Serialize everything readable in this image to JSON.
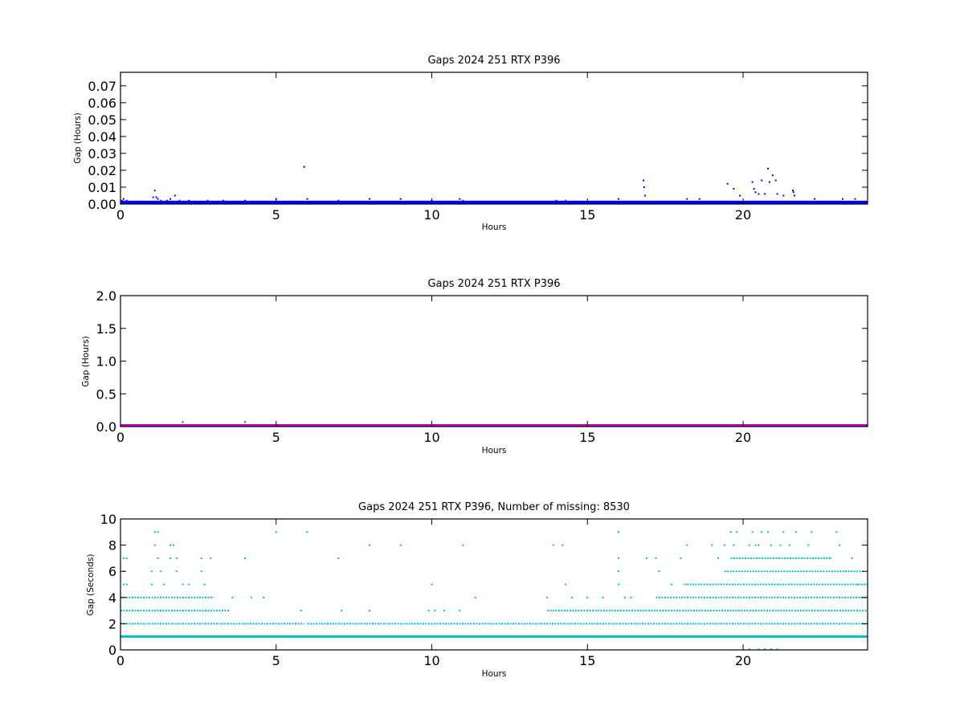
{
  "figure": {
    "background": "#ffffff"
  },
  "chart_data": [
    {
      "type": "scatter",
      "title": "Gaps 2024 251 RTX  P396",
      "xlabel": "Hours",
      "ylabel": "Gap (Hours)",
      "xlim": [
        0,
        24
      ],
      "ylim": [
        0,
        0.078
      ],
      "xticks": [
        0,
        5,
        10,
        15,
        20
      ],
      "xtick_labels": [
        "0",
        "5",
        "10",
        "15",
        "20"
      ],
      "yticks": [
        0,
        0.01,
        0.02,
        0.03,
        0.04,
        0.05,
        0.06,
        0.07
      ],
      "ytick_labels": [
        "0.00",
        "0.01",
        "0.02",
        "0.03",
        "0.04",
        "0.05",
        "0.06",
        "0.07"
      ],
      "color": "#0000ff",
      "baseline_band": {
        "x": [
          0,
          24
        ],
        "y": [
          0.0,
          0.0015
        ]
      },
      "series": [
        {
          "points": [
            [
              0.05,
              0.002
            ],
            [
              0.1,
              0.003
            ],
            [
              0.2,
              0.002
            ],
            [
              1.05,
              0.004
            ],
            [
              1.1,
              0.008
            ],
            [
              1.15,
              0.004
            ],
            [
              1.2,
              0.003
            ],
            [
              1.3,
              0.002
            ],
            [
              1.5,
              0.002
            ],
            [
              1.6,
              0.003
            ],
            [
              1.75,
              0.005
            ],
            [
              1.9,
              0.002
            ],
            [
              2.2,
              0.002
            ],
            [
              2.8,
              0.002
            ],
            [
              3.3,
              0.002
            ],
            [
              4.0,
              0.002
            ],
            [
              5.0,
              0.003
            ],
            [
              5.9,
              0.022
            ],
            [
              6.0,
              0.003
            ],
            [
              7.0,
              0.002
            ],
            [
              8.0,
              0.003
            ],
            [
              9.0,
              0.003
            ],
            [
              10.0,
              0.002
            ],
            [
              10.9,
              0.003
            ],
            [
              11.0,
              0.002
            ],
            [
              14.0,
              0.002
            ],
            [
              14.3,
              0.002
            ],
            [
              16.0,
              0.003
            ],
            [
              16.8,
              0.014
            ],
            [
              16.82,
              0.01
            ],
            [
              16.85,
              0.005
            ],
            [
              18.2,
              0.003
            ],
            [
              18.6,
              0.003
            ],
            [
              19.5,
              0.012
            ],
            [
              19.7,
              0.009
            ],
            [
              19.9,
              0.005
            ],
            [
              20.3,
              0.013
            ],
            [
              20.35,
              0.009
            ],
            [
              20.4,
              0.007
            ],
            [
              20.5,
              0.006
            ],
            [
              20.6,
              0.014
            ],
            [
              20.7,
              0.006
            ],
            [
              20.8,
              0.021
            ],
            [
              20.85,
              0.013
            ],
            [
              20.95,
              0.017
            ],
            [
              21.05,
              0.014
            ],
            [
              21.1,
              0.006
            ],
            [
              21.3,
              0.005
            ],
            [
              21.6,
              0.008
            ],
            [
              21.62,
              0.007
            ],
            [
              21.65,
              0.005
            ],
            [
              22.3,
              0.003
            ],
            [
              23.2,
              0.003
            ],
            [
              23.6,
              0.003
            ]
          ]
        }
      ]
    },
    {
      "type": "scatter",
      "title": "Gaps 2024 251 RTX  P396",
      "xlabel": "Hours",
      "ylabel": "Gap (Hours)",
      "xlim": [
        0,
        24
      ],
      "ylim": [
        0,
        2.0
      ],
      "xticks": [
        0,
        5,
        10,
        15,
        20
      ],
      "xtick_labels": [
        "0",
        "5",
        "10",
        "15",
        "20"
      ],
      "yticks": [
        0,
        0.5,
        1.0,
        1.5,
        2.0
      ],
      "ytick_labels": [
        "0.0",
        "0.5",
        "1.0",
        "1.5",
        "2.0"
      ],
      "color": "#bf00bf",
      "baseline_band": {
        "x": [
          0,
          24
        ],
        "y": [
          0.0,
          0.025
        ]
      },
      "series": [
        {
          "points": [
            [
              2.0,
              0.07
            ],
            [
              4.0,
              0.07
            ]
          ]
        }
      ]
    },
    {
      "type": "scatter",
      "title": "Gaps 2024 251 RTX  P396, Number of missing: 8530",
      "xlabel": "Hours",
      "ylabel": "Gap (Seconds)",
      "xlim": [
        0,
        24
      ],
      "ylim": [
        0,
        10
      ],
      "xticks": [
        0,
        5,
        10,
        15,
        20
      ],
      "xtick_labels": [
        "0",
        "5",
        "10",
        "15",
        "20"
      ],
      "yticks": [
        0,
        2,
        4,
        6,
        8,
        10
      ],
      "ytick_labels": [
        "0",
        "2",
        "4",
        "6",
        "8",
        "10"
      ],
      "color": "#00bfbf",
      "baseline_band": {
        "x": [
          0,
          24
        ],
        "y": [
          0.95,
          1.05
        ]
      },
      "level_segments": [
        {
          "y": 2,
          "ranges": [
            [
              0,
              5.9
            ],
            [
              6.0,
              24
            ]
          ]
        },
        {
          "y": 3,
          "ranges": [
            [
              0,
              3.5
            ],
            [
              13.7,
              24
            ]
          ]
        },
        {
          "y": 4,
          "ranges": [
            [
              0,
              3.0
            ],
            [
              17.2,
              24
            ]
          ]
        },
        {
          "y": 5,
          "ranges": [
            [
              18.1,
              24
            ]
          ]
        },
        {
          "y": 6,
          "ranges": [
            [
              19.4,
              23.9
            ]
          ]
        },
        {
          "y": 7,
          "ranges": [
            [
              19.6,
              22.8
            ]
          ]
        }
      ],
      "series": [
        {
          "points": [
            [
              0.1,
              5
            ],
            [
              0.1,
              6
            ],
            [
              0.1,
              7
            ],
            [
              0.2,
              5
            ],
            [
              0.2,
              7
            ],
            [
              1.0,
              5
            ],
            [
              1.0,
              6
            ],
            [
              1.1,
              9
            ],
            [
              1.1,
              8
            ],
            [
              1.2,
              9
            ],
            [
              1.2,
              7
            ],
            [
              1.3,
              6
            ],
            [
              1.4,
              5
            ],
            [
              1.6,
              8
            ],
            [
              1.6,
              7
            ],
            [
              1.7,
              8
            ],
            [
              1.8,
              7
            ],
            [
              1.8,
              6
            ],
            [
              2.0,
              5
            ],
            [
              2.2,
              5
            ],
            [
              2.6,
              7
            ],
            [
              2.6,
              6
            ],
            [
              2.7,
              5
            ],
            [
              2.9,
              7
            ],
            [
              3.6,
              4
            ],
            [
              4.0,
              7
            ],
            [
              4.2,
              4
            ],
            [
              4.6,
              4
            ],
            [
              5.0,
              9
            ],
            [
              5.8,
              3
            ],
            [
              6.0,
              9
            ],
            [
              7.0,
              7
            ],
            [
              7.1,
              3
            ],
            [
              8.0,
              8
            ],
            [
              8.0,
              3
            ],
            [
              9.0,
              8
            ],
            [
              9.9,
              3
            ],
            [
              10.0,
              5
            ],
            [
              10.1,
              3
            ],
            [
              10.4,
              3
            ],
            [
              10.9,
              3
            ],
            [
              11.0,
              8
            ],
            [
              11.4,
              4
            ],
            [
              13.7,
              4
            ],
            [
              13.9,
              8
            ],
            [
              14.2,
              8
            ],
            [
              14.3,
              5
            ],
            [
              14.5,
              4
            ],
            [
              15.0,
              4
            ],
            [
              15.5,
              4
            ],
            [
              16.0,
              9
            ],
            [
              16.0,
              7
            ],
            [
              16.0,
              6
            ],
            [
              16.0,
              5
            ],
            [
              16.2,
              4
            ],
            [
              16.4,
              4
            ],
            [
              16.9,
              7
            ],
            [
              17.2,
              7
            ],
            [
              17.3,
              6
            ],
            [
              17.7,
              5
            ],
            [
              18.0,
              7
            ],
            [
              18.2,
              8
            ],
            [
              19.0,
              8
            ],
            [
              19.2,
              7
            ],
            [
              19.4,
              8
            ],
            [
              19.6,
              9
            ],
            [
              19.7,
              8
            ],
            [
              19.8,
              9
            ],
            [
              20.2,
              8
            ],
            [
              20.3,
              9
            ],
            [
              20.4,
              8
            ],
            [
              20.5,
              8
            ],
            [
              20.6,
              9
            ],
            [
              20.8,
              9
            ],
            [
              20.9,
              8
            ],
            [
              21.2,
              8
            ],
            [
              21.3,
              9
            ],
            [
              21.5,
              8
            ],
            [
              21.7,
              9
            ],
            [
              22.1,
              8
            ],
            [
              22.2,
              9
            ],
            [
              22.8,
              7
            ],
            [
              23.0,
              9
            ],
            [
              23.1,
              8
            ],
            [
              23.3,
              6
            ],
            [
              23.5,
              7
            ],
            [
              23.7,
              5
            ],
            [
              23.8,
              4
            ],
            [
              23.9,
              5
            ],
            [
              20.2,
              0.05
            ],
            [
              20.5,
              0.05
            ],
            [
              20.7,
              0.05
            ],
            [
              20.9,
              0.05
            ],
            [
              21.1,
              0.05
            ]
          ]
        }
      ]
    }
  ]
}
